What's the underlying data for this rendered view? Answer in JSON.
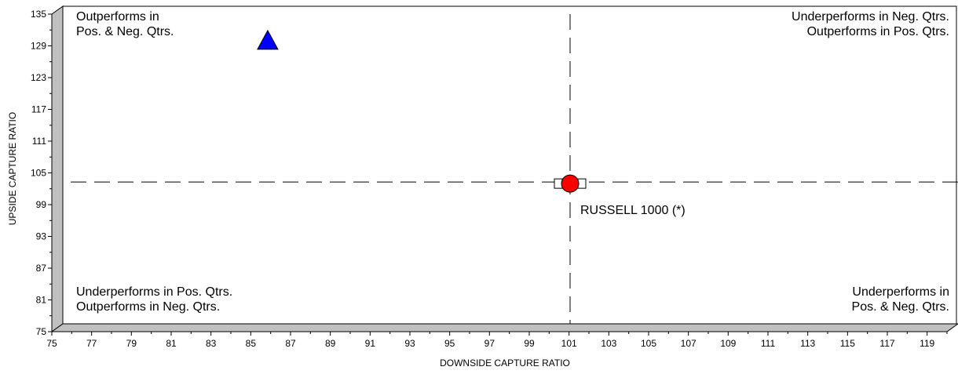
{
  "chart_data": {
    "type": "scatter",
    "xlabel": "DOWNSIDE CAPTURE RATIO",
    "ylabel": "UPSIDE CAPTURE RATIO",
    "xlim": [
      75,
      120
    ],
    "ylim": [
      75,
      135
    ],
    "x_ticks": [
      "75",
      "77",
      "79",
      "81",
      "83",
      "85",
      "87",
      "89",
      "91",
      "93",
      "95",
      "97",
      "99",
      "101",
      "103",
      "105",
      "107",
      "109",
      "111",
      "113",
      "115",
      "117",
      "119"
    ],
    "y_ticks": [
      "75",
      "81",
      "87",
      "93",
      "99",
      "105",
      "111",
      "117",
      "123",
      "129",
      "135"
    ],
    "x_tick_values": [
      75,
      77,
      79,
      81,
      83,
      85,
      87,
      89,
      91,
      93,
      95,
      97,
      99,
      101,
      103,
      105,
      107,
      109,
      111,
      113,
      115,
      117,
      119
    ],
    "y_tick_values": [
      75,
      81,
      87,
      93,
      99,
      105,
      111,
      117,
      123,
      129,
      135
    ],
    "reference_lines": {
      "x": 100.5,
      "y": 101.8
    },
    "quadrant_labels": {
      "top_left": [
        "Outperforms in",
        "Pos. & Neg. Qtrs."
      ],
      "top_right": [
        "Underperforms in Neg. Qtrs.",
        "Outperforms in Pos. Qtrs."
      ],
      "bottom_left": [
        "Underperforms in Pos. Qtrs.",
        "Outperforms in Neg. Qtrs."
      ],
      "bottom_right": [
        "Underperforms in",
        "Pos. & Neg. Qtrs."
      ]
    },
    "points": [
      {
        "label": "",
        "x": 85.3,
        "y": 128.5,
        "marker": "triangle",
        "color": "#0000ff"
      },
      {
        "label": "RUSSELL 1000 (*)",
        "x": 100.5,
        "y": 101.5,
        "marker": "circle",
        "color": "#ff0000"
      }
    ],
    "grid": false,
    "legend": "none"
  }
}
